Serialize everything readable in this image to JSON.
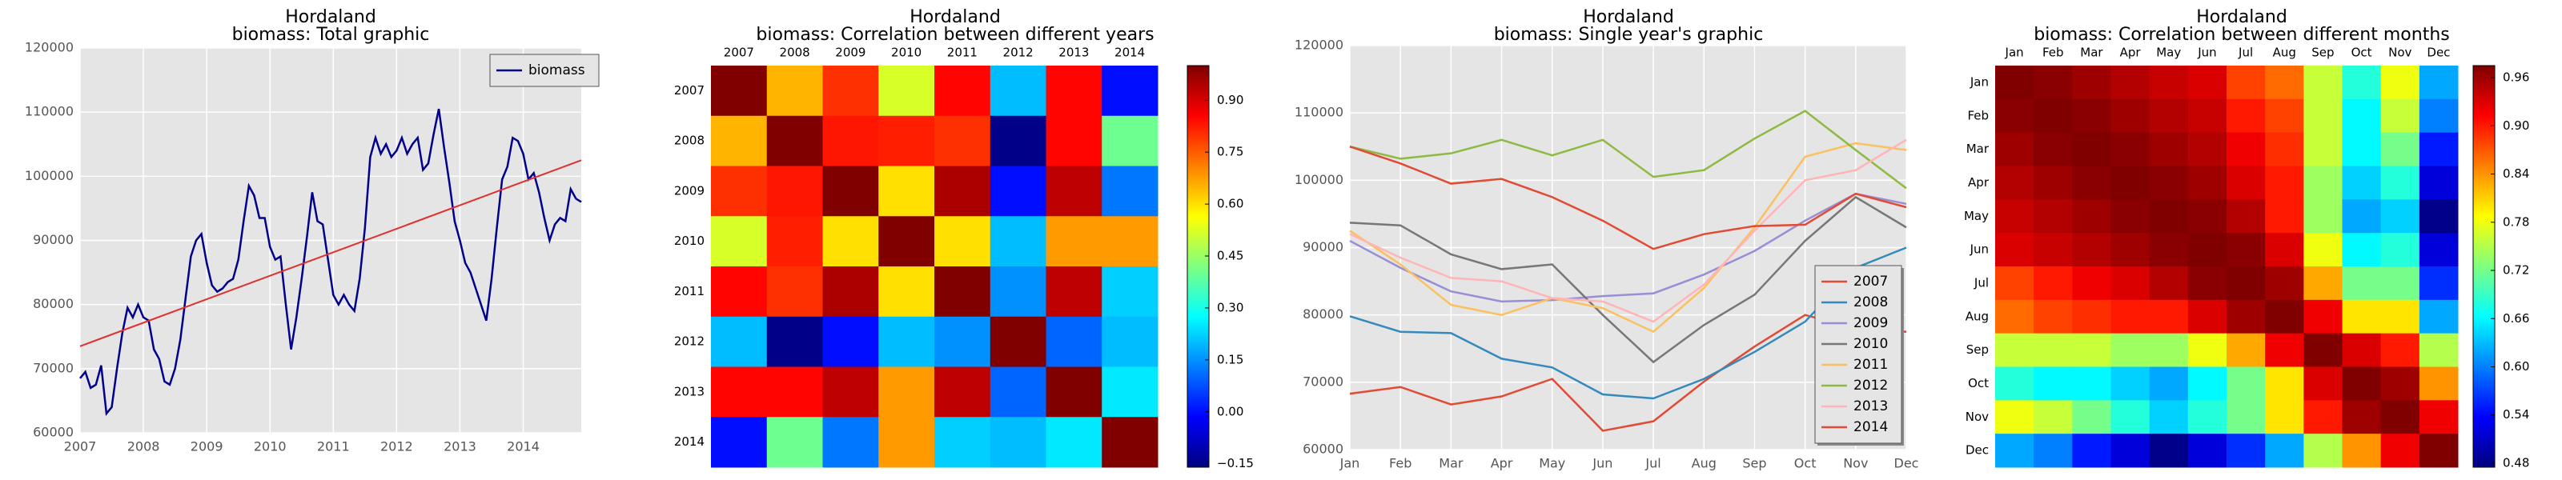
{
  "chart_data": [
    {
      "type": "line",
      "title": "Hordaland",
      "subtitle": "biomass: Total graphic",
      "categories": [
        "2007",
        null,
        null,
        null,
        null,
        null,
        null,
        null,
        null,
        null,
        null,
        null,
        "2008",
        null,
        null,
        null,
        null,
        null,
        null,
        null,
        null,
        null,
        null,
        null,
        "2009",
        null,
        null,
        null,
        null,
        null,
        null,
        null,
        null,
        null,
        null,
        null,
        "2010",
        null,
        null,
        null,
        null,
        null,
        null,
        null,
        null,
        null,
        null,
        null,
        "2011",
        null,
        null,
        null,
        null,
        null,
        null,
        null,
        null,
        null,
        null,
        null,
        "2012",
        null,
        null,
        null,
        null,
        null,
        null,
        null,
        null,
        null,
        null,
        null,
        "2013",
        null,
        null,
        null,
        null,
        null,
        null,
        null,
        null,
        null,
        null,
        null,
        "2014",
        null,
        null,
        null,
        null,
        null,
        null,
        null,
        null,
        null,
        null,
        null
      ],
      "series": [
        {
          "name": "biomass",
          "color": "#00008b",
          "values": [
            68500,
            69500,
            67000,
            67500,
            70500,
            63000,
            64000,
            70000,
            75500,
            79500,
            78000,
            80000,
            78000,
            77500,
            73000,
            71500,
            68000,
            67500,
            70000,
            74500,
            81000,
            87500,
            90000,
            91000,
            86500,
            83000,
            82000,
            82500,
            83500,
            84000,
            87000,
            93000,
            98500,
            97000,
            93500,
            93500,
            89000,
            87000,
            87500,
            80000,
            73000,
            78000,
            84000,
            90500,
            97500,
            93000,
            92500,
            87000,
            81500,
            80000,
            81500,
            80000,
            79000,
            84000,
            92000,
            103000,
            106000,
            103500,
            105000,
            103000,
            104000,
            106000,
            103500,
            105000,
            106000,
            101000,
            102000,
            106500,
            110500,
            104500,
            99000,
            93000,
            90000,
            86500,
            85000,
            82500,
            80000,
            77500,
            84000,
            92000,
            99500,
            101500,
            106000,
            105500,
            103500,
            99500,
            100500,
            97500,
            93500,
            90000,
            92500,
            93500,
            93000,
            98000,
            96500,
            96000
          ]
        }
      ],
      "trend": {
        "color": "#e03030",
        "values": [
          73500,
          102500
        ]
      },
      "ylim": [
        60000,
        120000
      ],
      "yticks": [
        60000,
        70000,
        80000,
        90000,
        100000,
        110000,
        120000
      ],
      "grid": true,
      "legend": "upper right"
    },
    {
      "type": "heatmap",
      "title": "Hordaland",
      "subtitle": "biomass: Correlation between different years",
      "categories": [
        "2007",
        "2008",
        "2009",
        "2010",
        "2011",
        "2012",
        "2013",
        "2014"
      ],
      "values": [
        [
          1,
          0.65,
          0.8,
          0.52,
          0.85,
          0.2,
          0.85,
          0
        ],
        [
          0.65,
          1,
          0.83,
          0.82,
          0.8,
          -0.15,
          0.85,
          0.4
        ],
        [
          0.8,
          0.83,
          1,
          0.6,
          0.95,
          0,
          0.93,
          0.12
        ],
        [
          0.52,
          0.82,
          0.6,
          1,
          0.6,
          0.2,
          0.68,
          0.68
        ],
        [
          0.85,
          0.8,
          0.95,
          0.6,
          1,
          0.15,
          0.93,
          0.22
        ],
        [
          0.2,
          -0.15,
          0,
          0.2,
          0.15,
          1,
          0.1,
          0.2
        ],
        [
          0.85,
          0.85,
          0.93,
          0.68,
          0.93,
          0.1,
          1,
          0.25
        ],
        [
          0,
          0.4,
          0.12,
          0.68,
          0.22,
          0.2,
          0.25,
          1
        ]
      ],
      "colormap": "jet",
      "colorbar_lim": [
        -0.16,
        1.0
      ],
      "colorbar_ticks": [
        {
          "value": -0.15,
          "label": "−0.15"
        },
        {
          "value": 0,
          "label": "0.00"
        },
        0.15,
        {
          "value": 0.3,
          "label": "0.30"
        },
        0.45,
        {
          "value": 0.6,
          "label": "0.60"
        },
        0.75,
        {
          "value": 0.9,
          "label": "0.90"
        }
      ]
    },
    {
      "type": "line",
      "title": "Hordaland",
      "subtitle": "biomass: Single year's graphic",
      "categories": [
        "Jan",
        "Feb",
        "Mar",
        "Apr",
        "May",
        "Jun",
        "Jul",
        "Aug",
        "Sep",
        "Oct",
        "Nov",
        "Dec"
      ],
      "series": [
        {
          "name": "2007",
          "color": "#e24a33",
          "values": [
            68300,
            69300,
            66700,
            67900,
            70500,
            62800,
            64200,
            70100,
            75300,
            80000,
            78000,
            77500
          ]
        },
        {
          "name": "2008",
          "color": "#348abd",
          "values": [
            79800,
            77500,
            77300,
            73500,
            72200,
            68200,
            67600,
            70500,
            74500,
            79000,
            87000,
            90000
          ]
        },
        {
          "name": "2009",
          "color": "#988ed5",
          "values": [
            91000,
            87000,
            83500,
            82000,
            82200,
            82800,
            83200,
            86000,
            89500,
            94000,
            98000,
            96500
          ]
        },
        {
          "name": "2010",
          "color": "#777777",
          "values": [
            93700,
            93300,
            89000,
            86800,
            87500,
            80000,
            73000,
            78500,
            83000,
            91000,
            97500,
            93000
          ]
        },
        {
          "name": "2011",
          "color": "#fbc15e",
          "values": [
            92500,
            87500,
            81500,
            80000,
            82500,
            81000,
            77500,
            84000,
            93000,
            103500,
            105500,
            104500
          ]
        },
        {
          "name": "2012",
          "color": "#8eba42",
          "values": [
            105000,
            103200,
            104000,
            106000,
            103700,
            106000,
            100500,
            101500,
            106200,
            110300,
            104500,
            98800
          ]
        },
        {
          "name": "2013",
          "color": "#ffb5b8",
          "values": [
            92000,
            88500,
            85500,
            85000,
            82500,
            82000,
            79000,
            84500,
            92500,
            100000,
            101500,
            106000
          ]
        },
        {
          "name": "2014",
          "color": "#e24a33",
          "values": [
            105000,
            102500,
            99500,
            100200,
            97500,
            94000,
            89800,
            92000,
            93200,
            93400,
            98000,
            96000
          ]
        }
      ],
      "ylim": [
        60000,
        120000
      ],
      "yticks": [
        60000,
        70000,
        80000,
        90000,
        100000,
        110000,
        120000
      ],
      "grid": true,
      "legend": "lower right"
    },
    {
      "type": "heatmap",
      "title": "Hordaland",
      "subtitle": "biomass: Correlation between different months",
      "categories": [
        "Jan",
        "Feb",
        "Mar",
        "Apr",
        "May",
        "Jun",
        "Jul",
        "Aug",
        "Sep",
        "Oct",
        "Nov",
        "Dec"
      ],
      "values": [
        [
          1,
          0.97,
          0.96,
          0.95,
          0.94,
          0.93,
          0.88,
          0.86,
          0.76,
          0.68,
          0.78,
          0.62
        ],
        [
          0.97,
          1,
          0.97,
          0.96,
          0.95,
          0.94,
          0.9,
          0.88,
          0.76,
          0.66,
          0.76,
          0.6
        ],
        [
          0.96,
          0.97,
          1,
          0.97,
          0.96,
          0.95,
          0.92,
          0.89,
          0.76,
          0.66,
          0.72,
          0.55
        ],
        [
          0.95,
          0.96,
          0.97,
          1,
          0.97,
          0.96,
          0.93,
          0.9,
          0.74,
          0.64,
          0.68,
          0.52
        ],
        [
          0.94,
          0.95,
          0.96,
          0.97,
          1,
          0.97,
          0.95,
          0.9,
          0.74,
          0.62,
          0.64,
          0.48
        ],
        [
          0.93,
          0.94,
          0.95,
          0.96,
          0.97,
          1,
          0.97,
          0.93,
          0.78,
          0.66,
          0.68,
          0.52
        ],
        [
          0.88,
          0.9,
          0.92,
          0.93,
          0.95,
          0.97,
          1,
          0.96,
          0.83,
          0.72,
          0.72,
          0.56
        ],
        [
          0.86,
          0.88,
          0.89,
          0.9,
          0.9,
          0.93,
          0.96,
          1,
          0.92,
          0.8,
          0.8,
          0.62
        ],
        [
          0.76,
          0.76,
          0.76,
          0.74,
          0.74,
          0.78,
          0.83,
          0.92,
          1,
          0.93,
          0.9,
          0.75
        ],
        [
          0.68,
          0.66,
          0.66,
          0.64,
          0.62,
          0.66,
          0.72,
          0.8,
          0.93,
          1,
          0.96,
          0.84
        ],
        [
          0.78,
          0.76,
          0.72,
          0.68,
          0.64,
          0.68,
          0.72,
          0.8,
          0.9,
          0.96,
          1,
          0.92
        ],
        [
          0.62,
          0.6,
          0.55,
          0.52,
          0.48,
          0.52,
          0.56,
          0.62,
          0.75,
          0.84,
          0.92,
          1
        ]
      ],
      "colormap": "jet",
      "colorbar_lim": [
        0.475,
        0.975
      ],
      "colorbar_ticks": [
        0.48,
        0.54,
        {
          "value": 0.6,
          "label": "0.60"
        },
        0.66,
        0.72,
        0.78,
        0.84,
        {
          "value": 0.9,
          "label": "0.90"
        },
        0.96
      ]
    }
  ]
}
